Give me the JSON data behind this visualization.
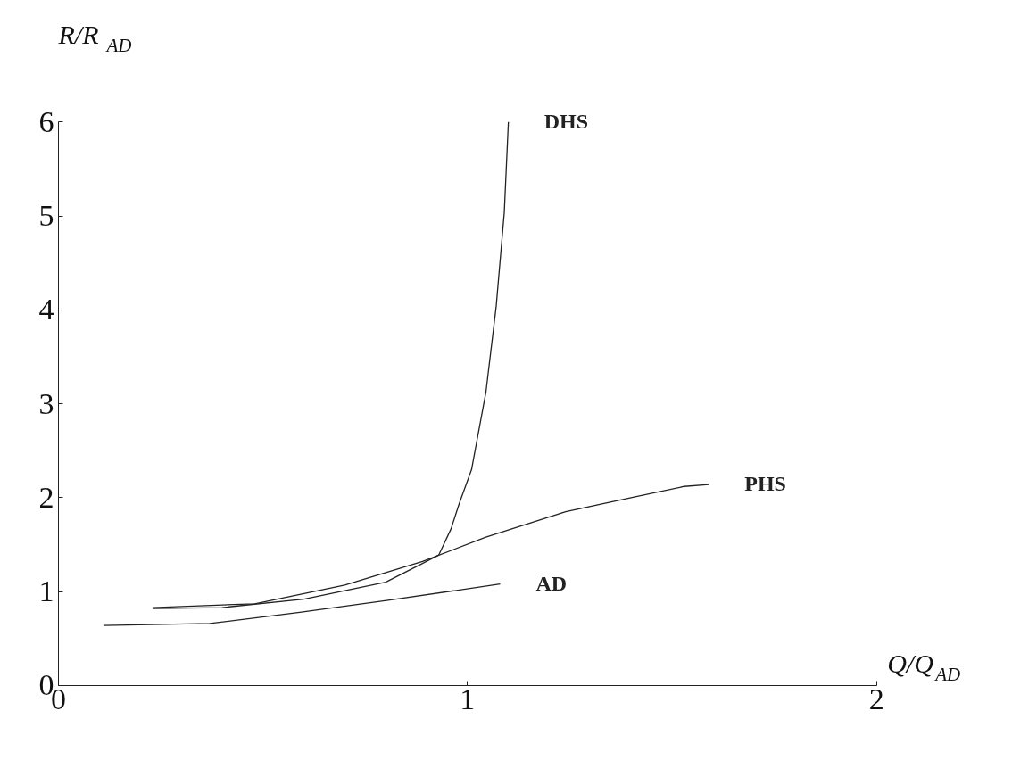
{
  "chart_data": {
    "type": "line",
    "xlabel": "Q/Q$_{AD}$",
    "ylabel": "R/R$_{AD}$",
    "xlim": [
      0,
      2
    ],
    "ylim": [
      0,
      6
    ],
    "xticks": [
      0,
      1,
      2
    ],
    "yticks": [
      0,
      1,
      2,
      3,
      4,
      5,
      6
    ],
    "grid": false,
    "legend": false,
    "marker": "none",
    "line_style": "solid",
    "series": [
      {
        "name": "DHS",
        "color": "#222222",
        "x": [
          0.23,
          0.4,
          0.6,
          0.8,
          0.89,
          0.93,
          0.96,
          0.98,
          1.01,
          1.045,
          1.07,
          1.09,
          1.1
        ],
        "values": [
          0.82,
          0.83,
          0.92,
          1.1,
          1.3,
          1.39,
          1.67,
          1.94,
          2.3,
          3.12,
          4.03,
          5.04,
          6
        ]
      },
      {
        "name": "PHS",
        "color": "#222222",
        "x": [
          0.23,
          0.48,
          0.7,
          0.89,
          1.045,
          1.24,
          1.41,
          1.53,
          1.59
        ],
        "values": [
          0.83,
          0.87,
          1.07,
          1.32,
          1.58,
          1.85,
          2.01,
          2.12,
          2.14
        ]
      },
      {
        "name": "AD",
        "color": "#222222",
        "x": [
          0.11,
          0.37,
          0.59,
          0.81,
          1.08
        ],
        "values": [
          0.64,
          0.66,
          0.78,
          0.91,
          1.08
        ]
      }
    ]
  }
}
